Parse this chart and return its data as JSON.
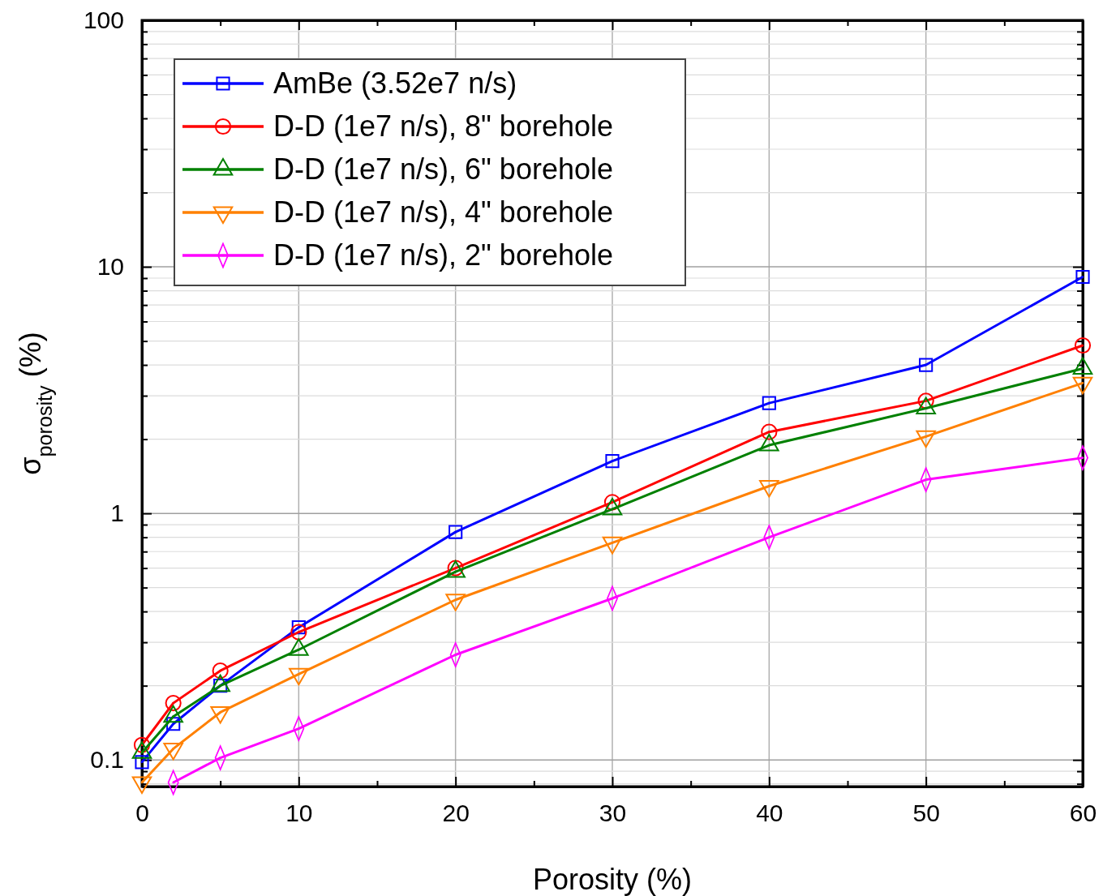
{
  "chart_data": {
    "type": "line",
    "xlabel": "Porosity (%)",
    "ylabel": "σ$_{porosity}$ (%)",
    "log": "y",
    "grid": true,
    "legend": "top left",
    "line_style": "solid",
    "x": [
      0,
      2,
      5,
      10,
      20,
      30,
      40,
      50,
      60
    ],
    "xlim": [
      0,
      60
    ],
    "xticks": [
      0,
      {
        "value": 5,
        "label": null
      },
      10,
      {
        "value": 15,
        "label": null
      },
      20,
      {
        "value": 25,
        "label": null
      },
      30,
      {
        "value": 35,
        "label": null
      },
      40,
      {
        "value": 45,
        "label": null
      },
      50,
      {
        "value": 55,
        "label": null
      },
      60
    ],
    "ylim": [
      0.078,
      100
    ],
    "yticks": [
      {
        "value": 0.08,
        "label": null
      },
      {
        "value": 0.09,
        "label": null
      },
      0.1,
      {
        "value": 0.2,
        "label": null
      },
      {
        "value": 0.3,
        "label": null
      },
      {
        "value": 0.4,
        "label": null
      },
      {
        "value": 0.5,
        "label": null
      },
      {
        "value": 0.6,
        "label": null
      },
      {
        "value": 0.7,
        "label": null
      },
      {
        "value": 0.8,
        "label": null
      },
      {
        "value": 0.9,
        "label": null
      },
      1,
      {
        "value": 2,
        "label": null
      },
      {
        "value": 3,
        "label": null
      },
      {
        "value": 4,
        "label": null
      },
      {
        "value": 5,
        "label": null
      },
      {
        "value": 6,
        "label": null
      },
      {
        "value": 7,
        "label": null
      },
      {
        "value": 8,
        "label": null
      },
      {
        "value": 9,
        "label": null
      },
      10,
      {
        "value": 20,
        "label": null
      },
      {
        "value": 30,
        "label": null
      },
      {
        "value": 40,
        "label": null
      },
      {
        "value": 50,
        "label": null
      },
      {
        "value": 60,
        "label": null
      },
      {
        "value": 70,
        "label": null
      },
      {
        "value": 80,
        "label": null
      },
      {
        "value": 90,
        "label": null
      },
      100
    ],
    "series": [
      {
        "name": "AmBe (3.52e7 n/s)",
        "color": "#0000ff",
        "marker": "square",
        "values": [
          0.098,
          0.14,
          0.2,
          0.345,
          0.84,
          1.63,
          2.8,
          4.0,
          9.1
        ]
      },
      {
        "name": "D-D (1e7 n/s), 8\" borehole",
        "color": "#ff0000",
        "marker": "circle",
        "values": [
          0.115,
          0.17,
          0.23,
          0.33,
          0.6,
          1.11,
          2.14,
          2.86,
          4.8
        ]
      },
      {
        "name": "D-D (1e7 n/s), 6\" borehole",
        "color": "#008000",
        "marker": "triangle",
        "values": [
          0.107,
          0.15,
          0.2,
          0.28,
          0.58,
          1.04,
          1.89,
          2.67,
          3.87
        ]
      },
      {
        "name": "D-D (1e7 n/s), 4\" borehole",
        "color": "#ff8000",
        "marker": "triangle-down",
        "values": [
          0.081,
          0.111,
          0.156,
          0.223,
          0.446,
          0.76,
          1.29,
          2.05,
          3.38
        ]
      },
      {
        "name": "D-D (1e7 n/s), 2\" borehole",
        "color": "#ff00ff",
        "marker": "diamond",
        "values": [
          null,
          0.081,
          0.102,
          0.134,
          0.267,
          0.452,
          0.8,
          1.37,
          1.68
        ]
      }
    ]
  }
}
